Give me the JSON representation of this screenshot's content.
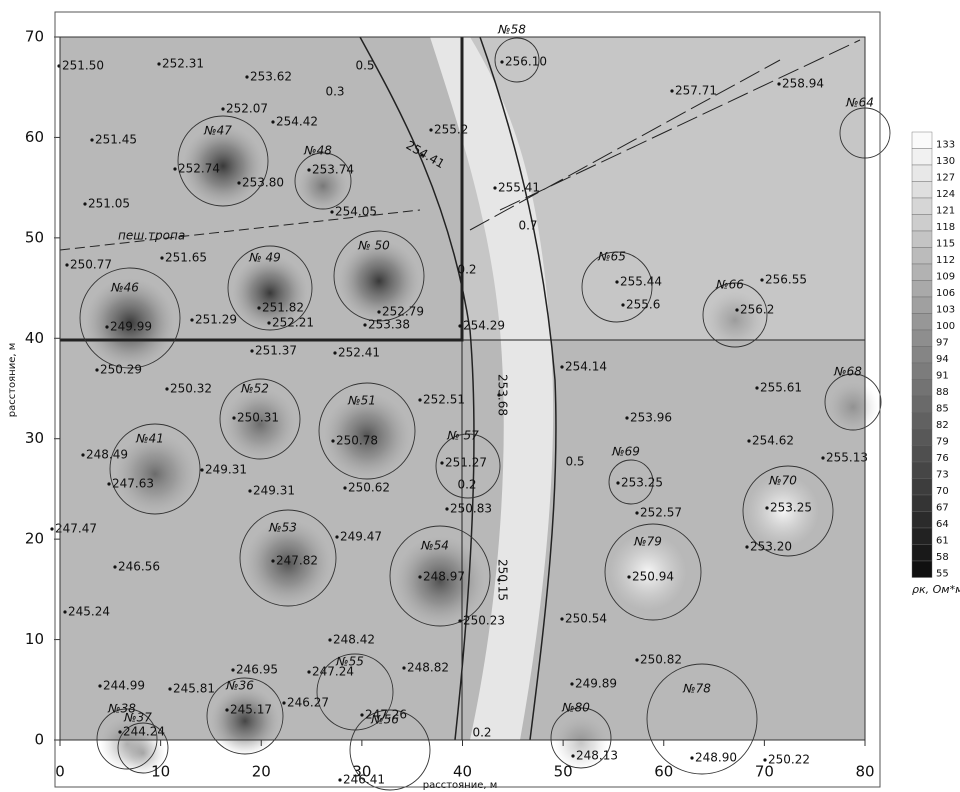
{
  "map": {
    "xlim": [
      0,
      80
    ],
    "ylim": [
      0,
      70
    ],
    "xticks": [
      0,
      10,
      20,
      30,
      40,
      50,
      60,
      70,
      80
    ],
    "yticks": [
      0,
      10,
      20,
      30,
      40,
      50,
      60,
      70
    ],
    "xlabel": "расстояние, м",
    "ylabel": "расстояние, м"
  },
  "legend": {
    "values": [
      133,
      130,
      127,
      124,
      121,
      118,
      115,
      112,
      109,
      106,
      103,
      100,
      97,
      94,
      91,
      88,
      85,
      82,
      79,
      76,
      73,
      70,
      67,
      64,
      61,
      58,
      55
    ],
    "unit": "ρк, Ом*м"
  },
  "trail": "пеш.тропа",
  "mounds": [
    "№47",
    "№48",
    "№ 49",
    "№ 50",
    "№46",
    "№52",
    "№51",
    "№41",
    "№ 57",
    "№53",
    "№54",
    "№55",
    "№36",
    "№38",
    "№37",
    "№56",
    "№58",
    "№64",
    "№65",
    "№66",
    "№68",
    "№69",
    "№70",
    "№79",
    "№78",
    "№80"
  ],
  "contour_labels": [
    "0.5",
    "0.3",
    "0.7",
    "0.2",
    "0.5",
    "0.2",
    "0.2"
  ],
  "elevations": [
    "251.50",
    "252.31",
    "253.62",
    "252.07",
    "251.45",
    "254.42",
    "252.74",
    "253.80",
    "253.74",
    "251.05",
    "254.05",
    "251.65",
    "250.77",
    "251.82",
    "252.79",
    "251.29",
    "249.99",
    "252.21",
    "253.38",
    "254.29",
    "250.29",
    "251.37",
    "252.41",
    "250.32",
    "250.31",
    "252.51",
    "250.78",
    "248.49",
    "247.63",
    "249.31",
    "249.31",
    "250.62",
    "251.27",
    "250.83",
    "247.47",
    "249.47",
    "247.82",
    "246.56",
    "248.97",
    "245.24",
    "248.42",
    "250.23",
    "246.95",
    "244.99",
    "245.81",
    "247.24",
    "248.82",
    "247.26",
    "245.17",
    "246.27",
    "244.24",
    "246.41",
    "256.10",
    "257.71",
    "258.94",
    "255.2",
    "255.41",
    "255.44",
    "255.6",
    "256.55",
    "256.2",
    "254.14",
    "253.68",
    "255.61",
    "253.96",
    "254.62",
    "255.13",
    "253.25",
    "252.57",
    "253.25",
    "253.20",
    "250.94",
    "250.15",
    "250.54",
    "250.82",
    "249.89",
    "248.13",
    "248.90",
    "250.22",
    "254.41"
  ]
}
